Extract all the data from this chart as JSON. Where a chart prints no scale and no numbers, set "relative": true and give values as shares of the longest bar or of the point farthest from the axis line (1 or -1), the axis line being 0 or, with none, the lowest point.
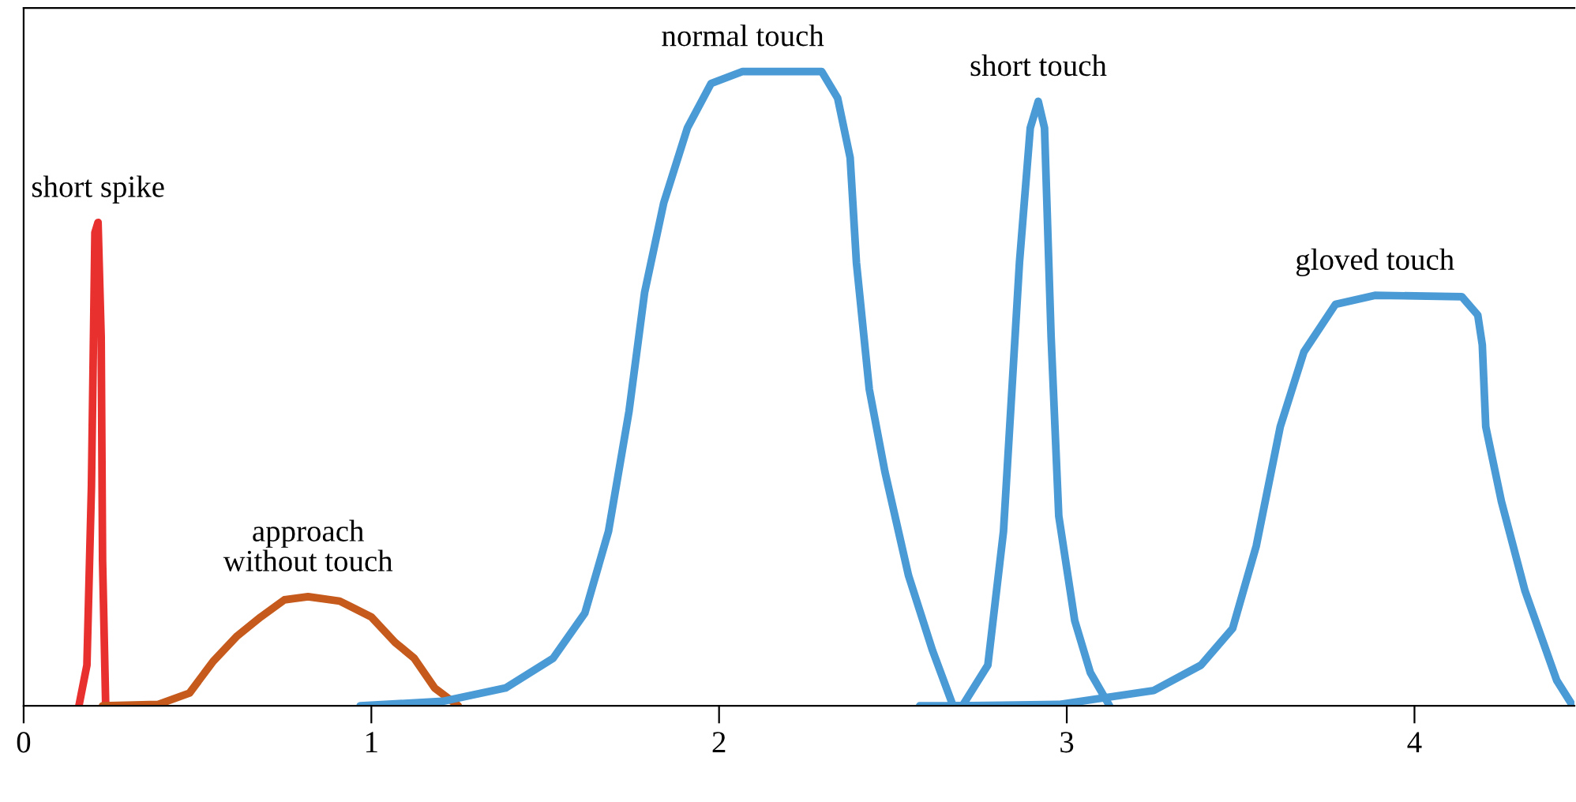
{
  "chart_data": {
    "type": "line",
    "relative": true,
    "xlim": [
      0,
      4.46
    ],
    "xticks": [
      0,
      1,
      2,
      3,
      4
    ],
    "series": [
      {
        "name": "short spike",
        "color": "#e8302f",
        "x": [
          0.159,
          0.182,
          0.195,
          0.205,
          0.214,
          0.223,
          0.227,
          0.236
        ],
        "values": [
          0,
          0.064,
          0.346,
          0.746,
          0.762,
          0.581,
          0.228,
          0
        ]
      },
      {
        "name": "approach\nwithout touch",
        "color": "#c55a1c",
        "x": [
          0.227,
          0.386,
          0.477,
          0.545,
          0.614,
          0.682,
          0.75,
          0.818,
          0.909,
          1.0,
          1.068,
          1.123,
          1.182,
          1.25
        ],
        "values": [
          0,
          0.002,
          0.02,
          0.07,
          0.11,
          0.14,
          0.167,
          0.172,
          0.165,
          0.14,
          0.1,
          0.075,
          0.028,
          0
        ]
      },
      {
        "name": "normal touch",
        "color": "#4a9ad6",
        "x": [
          0.968,
          1.205,
          1.386,
          1.523,
          1.614,
          1.682,
          1.741,
          1.786,
          1.841,
          1.909,
          1.977,
          2.068,
          2.295,
          2.341,
          2.377,
          2.395,
          2.432,
          2.477,
          2.545,
          2.614,
          2.673
        ],
        "values": [
          0,
          0.007,
          0.028,
          0.075,
          0.146,
          0.275,
          0.464,
          0.652,
          0.793,
          0.911,
          0.981,
          1.0,
          1.0,
          0.958,
          0.864,
          0.699,
          0.499,
          0.369,
          0.205,
          0.087,
          0
        ]
      },
      {
        "name": "short touch",
        "color": "#4a9ad6",
        "x": [
          2.577,
          2.7,
          2.773,
          2.818,
          2.864,
          2.895,
          2.918,
          2.936,
          2.955,
          2.977,
          3.023,
          3.068,
          3.123
        ],
        "values": [
          0,
          0,
          0.064,
          0.275,
          0.699,
          0.911,
          0.953,
          0.911,
          0.581,
          0.299,
          0.134,
          0.052,
          0
        ]
      },
      {
        "name": "gloved touch",
        "color": "#4a9ad6",
        "x": [
          2.682,
          2.977,
          3.25,
          3.386,
          3.477,
          3.545,
          3.614,
          3.682,
          3.773,
          3.886,
          4.136,
          4.182,
          4.195,
          4.205,
          4.25,
          4.318,
          4.409,
          4.455
        ],
        "values": [
          0,
          0.002,
          0.024,
          0.064,
          0.122,
          0.252,
          0.44,
          0.558,
          0.633,
          0.647,
          0.645,
          0.616,
          0.569,
          0.44,
          0.322,
          0.181,
          0.04,
          0
        ]
      }
    ]
  }
}
